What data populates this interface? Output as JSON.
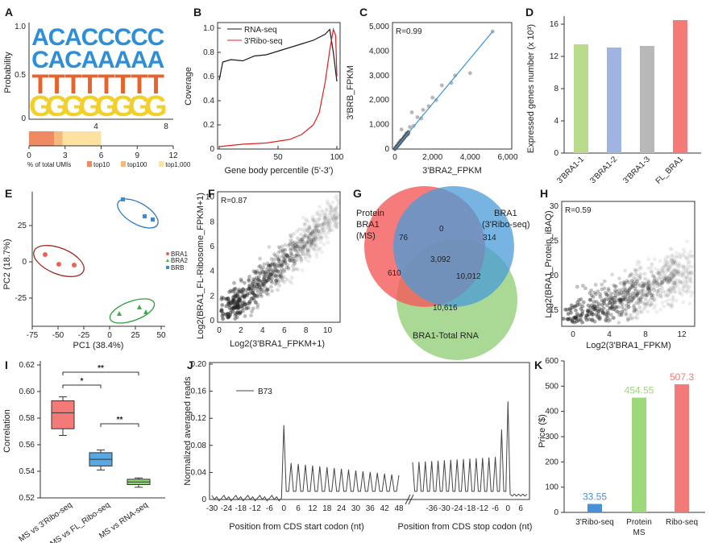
{
  "letters": [
    "A",
    "B",
    "C",
    "D",
    "E",
    "F",
    "G",
    "H",
    "I",
    "J",
    "K"
  ],
  "A": {
    "ylabel": "Probability",
    "yticks": [
      "0",
      "0.5",
      "1.0"
    ],
    "xticks": [
      "4",
      "8"
    ],
    "rows": [
      "ACACCCCC",
      "CACAAAAA",
      "TTTTTTTT",
      "GGGGGGGG"
    ],
    "row_colors": [
      "#2f8ed6",
      "#2f8ed6",
      "#e8632b",
      "#f2cf2a"
    ],
    "bar_xticks": [
      "0",
      "3",
      "6",
      "9",
      "12"
    ],
    "bar_xlabel": "% of total UMIs",
    "bar_segments": [
      {
        "name": "top10",
        "value": 2.1,
        "color": "#ef8a62"
      },
      {
        "name": "top100",
        "value": 0.7,
        "color": "#f5b97c"
      },
      {
        "name": "top1,000",
        "value": 3.2,
        "color": "#fbe2a1"
      }
    ],
    "xmax": 12
  },
  "B": {
    "ylabel": "Coverage",
    "xlabel": "Gene body percentile (5'-3')",
    "yticks": [
      "0",
      "0.2",
      "0.4",
      "0.6",
      "0.8",
      "1.0"
    ],
    "xticks": [
      "0",
      "50",
      "100"
    ],
    "legend": [
      "RNA-seq",
      "3'Ribo-seq"
    ],
    "rna": [
      [
        0,
        0.57
      ],
      [
        3,
        0.72
      ],
      [
        10,
        0.74
      ],
      [
        20,
        0.73
      ],
      [
        30,
        0.77
      ],
      [
        40,
        0.78
      ],
      [
        50,
        0.81
      ],
      [
        60,
        0.84
      ],
      [
        70,
        0.87
      ],
      [
        80,
        0.9
      ],
      [
        90,
        0.95
      ],
      [
        94,
        0.99
      ],
      [
        97,
        0.8
      ],
      [
        100,
        0.56
      ]
    ],
    "ribo": [
      [
        0,
        0.02
      ],
      [
        20,
        0.04
      ],
      [
        40,
        0.05
      ],
      [
        60,
        0.08
      ],
      [
        70,
        0.12
      ],
      [
        80,
        0.2
      ],
      [
        85,
        0.3
      ],
      [
        90,
        0.55
      ],
      [
        94,
        0.82
      ],
      [
        97,
        0.99
      ],
      [
        99,
        0.94
      ],
      [
        100,
        0.6
      ]
    ]
  },
  "C": {
    "r": "R=0.99",
    "ylabel": "3'BRB_FPKM",
    "xlabel": "3'BRA2_FPKM",
    "yticks": [
      "0",
      "1,000",
      "2,000",
      "3,000",
      "4,000",
      "5,000"
    ],
    "xticks": [
      "0",
      "2,000",
      "4,000",
      "6,000"
    ],
    "points": [
      [
        50,
        40
      ],
      [
        100,
        120
      ],
      [
        150,
        130
      ],
      [
        200,
        250
      ],
      [
        250,
        220
      ],
      [
        300,
        350
      ],
      [
        400,
        380
      ],
      [
        500,
        520
      ],
      [
        600,
        650
      ],
      [
        700,
        600
      ],
      [
        800,
        900
      ],
      [
        1000,
        950
      ],
      [
        1200,
        1300
      ],
      [
        1400,
        1250
      ],
      [
        1500,
        1600
      ],
      [
        1800,
        1750
      ],
      [
        2000,
        2100
      ],
      [
        2200,
        2000
      ],
      [
        2500,
        2600
      ],
      [
        3000,
        2700
      ],
      [
        3200,
        3000
      ],
      [
        4000,
        3100
      ],
      [
        5200,
        4800
      ],
      [
        350,
        800
      ],
      [
        900,
        1500
      ]
    ],
    "fit": [
      [
        0,
        0
      ],
      [
        5200,
        4800
      ]
    ]
  },
  "D": {
    "ylabel": "Expressed genes number (x 10³)",
    "yticks": [
      "0",
      "4",
      "8",
      "12",
      "16"
    ],
    "categories": [
      "3'BRA1-1",
      "3'BRA1-2",
      "3'BRA1-3",
      "FL_BRA1"
    ],
    "values": [
      13.5,
      13.1,
      13.3,
      16.5
    ],
    "colors": [
      "#b9dc8c",
      "#9fb4e0",
      "#b8b8b8",
      "#f47a78"
    ],
    "ymax": 17
  },
  "E": {
    "ylabel": "PC2 (18.7%)",
    "xlabel": "PC1 (38.4%)",
    "xticks": [
      "-75",
      "-50",
      "-25",
      "0",
      "25",
      "50"
    ],
    "yticks": [
      "25",
      "0",
      "-25"
    ],
    "legend": [
      "BRA1",
      "BRA2",
      "BRB"
    ],
    "colors": [
      "#e8635b",
      "#3cae4a",
      "#3b8bd1"
    ]
  },
  "F": {
    "r": "R=0.87",
    "ylabel": "Log2(BRA1_FL-Ribosome_FPKM+1)",
    "xlabel": "Log2(3'BRA1_FPKM+1)",
    "yticks": [
      "0",
      "2",
      "4",
      "6",
      "8",
      "10"
    ],
    "xticks": [
      "0",
      "2",
      "4",
      "6",
      "8",
      "10"
    ]
  },
  "G": {
    "labels": [
      "Protein BRA1 (MS)",
      "BRA1 (3'Ribo-seq)",
      "BRA1-Total RNA"
    ],
    "numbers": [
      "76",
      "0",
      "314",
      "3,092",
      "610",
      "10,012",
      "10,616"
    ]
  },
  "H": {
    "r": "R=0.59",
    "ylabel": "Log2(BRA1_Protein_iBAQ)",
    "xlabel": "Log2(3'BRA1_FPKM)",
    "yticks": [
      "15",
      "20",
      "25",
      "30"
    ],
    "xticks": [
      "0",
      "4",
      "8",
      "12"
    ]
  },
  "I": {
    "ylabel": "Correlation",
    "yticks": [
      "0.52",
      "0.54",
      "0.56",
      "0.58",
      "0.60",
      "0.62"
    ],
    "categories": [
      "MS vs 3'Ribo-seq",
      "MS vs FL_Ribo-seq",
      "MS vs RNA-seq"
    ],
    "boxes": [
      {
        "min": 0.567,
        "q1": 0.572,
        "med": 0.584,
        "q3": 0.593,
        "max": 0.596,
        "color": "#f47a78"
      },
      {
        "min": 0.541,
        "q1": 0.544,
        "med": 0.549,
        "q3": 0.554,
        "max": 0.556,
        "color": "#59a8e6"
      },
      {
        "min": 0.528,
        "q1": 0.53,
        "med": 0.532,
        "q3": 0.534,
        "max": 0.535,
        "color": "#8ed96c"
      }
    ],
    "sig": [
      "**",
      "*",
      "**"
    ],
    "ymin": 0.52,
    "ymax": 0.62
  },
  "J": {
    "ylabel": "Normalized averaged reads",
    "yticks": [
      "0",
      "0.04",
      "0.08",
      "0.12",
      "0.16",
      "0.20"
    ],
    "legend": "B73",
    "start_ticks": [
      "-30",
      "-24",
      "-18",
      "-12",
      "-6",
      "0",
      "6",
      "12",
      "18",
      "24",
      "30",
      "36",
      "42",
      "48"
    ],
    "stop_ticks": [
      "-36",
      "-30",
      "-24",
      "-18",
      "-12",
      "-6",
      "0",
      "6"
    ],
    "xlabel_start": "Position from CDS start codon (nt)",
    "xlabel_stop": "Position from CDS stop codon (nt)"
  },
  "K": {
    "ylabel": "Price ($)",
    "yticks": [
      "0",
      "100",
      "200",
      "300",
      "400",
      "500",
      "600"
    ],
    "categories": [
      "3'Ribo-seq",
      "Protein MS",
      "Ribo-seq"
    ],
    "values": [
      33.55,
      454.55,
      507.3
    ],
    "labels": [
      "33.55",
      "454.55",
      "507.3"
    ],
    "colors": [
      "#4a90d9",
      "#9cd97a",
      "#f47a78"
    ],
    "ymax": 600
  }
}
